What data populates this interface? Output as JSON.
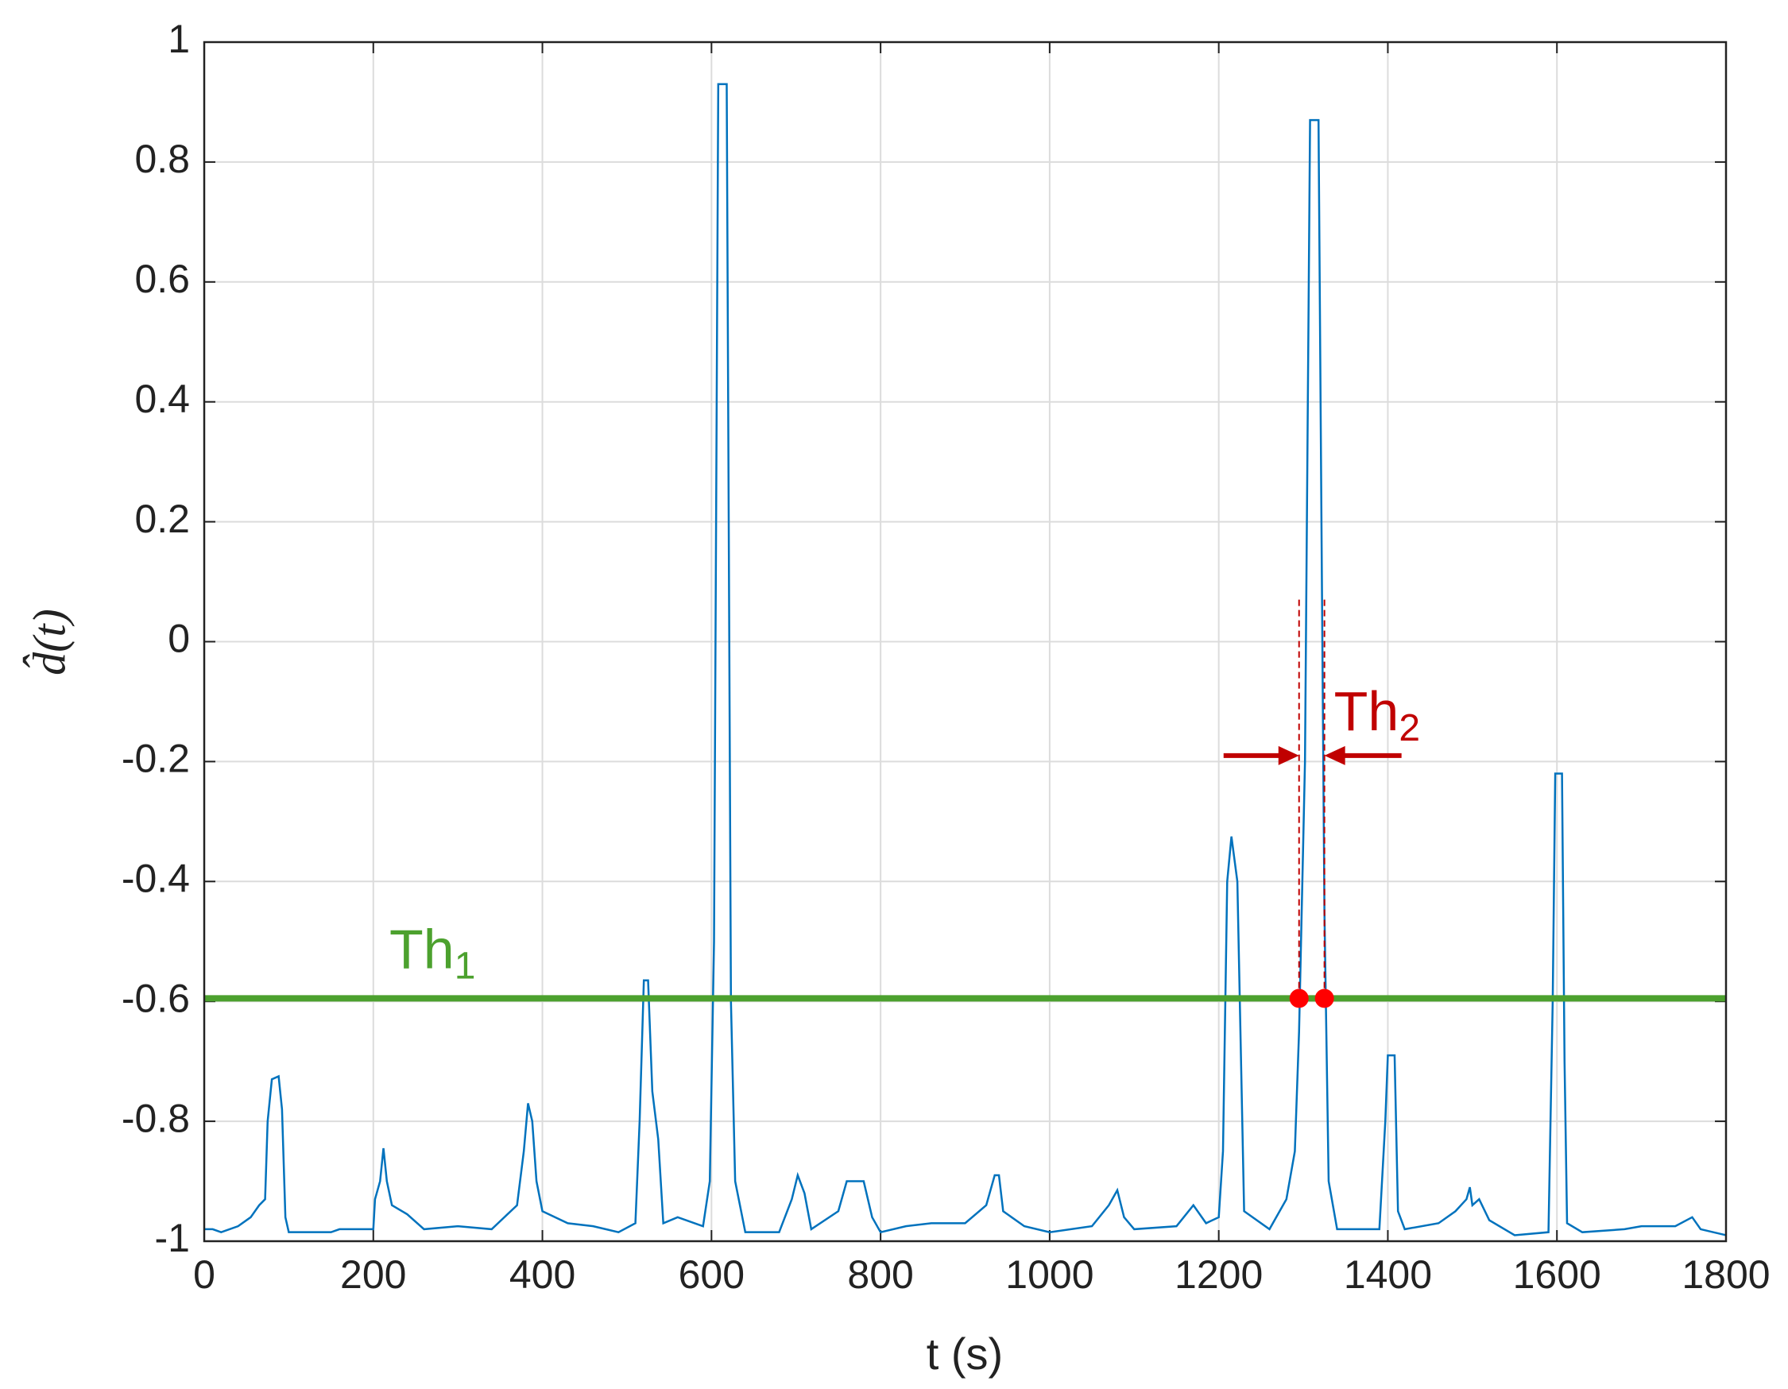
{
  "chart_data": {
    "type": "line",
    "xlabel": "t (s)",
    "ylabel": "d̂(t)",
    "xlim": [
      0,
      1800
    ],
    "xticks": [
      0,
      200,
      400,
      600,
      800,
      1000,
      1200,
      1400,
      1600,
      1800
    ],
    "ylim": [
      -1,
      1
    ],
    "yticks": [
      -1,
      -0.8,
      -0.6,
      -0.4,
      -0.2,
      0,
      0.2,
      0.4,
      0.6,
      0.8,
      1
    ],
    "grid": true,
    "x": [
      0,
      10,
      20,
      40,
      55,
      65,
      72,
      75,
      80,
      88,
      92,
      96,
      100,
      150,
      160,
      200,
      202,
      208,
      212,
      216,
      222,
      240,
      260,
      300,
      340,
      370,
      378,
      383,
      388,
      393,
      400,
      430,
      460,
      490,
      510,
      515,
      520,
      525,
      530,
      537,
      543,
      560,
      590,
      598,
      603,
      608,
      618,
      623,
      628,
      640,
      680,
      695,
      702,
      710,
      718,
      750,
      760,
      780,
      790,
      800,
      830,
      860,
      900,
      925,
      935,
      940,
      945,
      970,
      1000,
      1050,
      1070,
      1080,
      1088,
      1100,
      1150,
      1170,
      1185,
      1200,
      1205,
      1210,
      1215,
      1222,
      1230,
      1260,
      1280,
      1290,
      1295,
      1302,
      1308,
      1318,
      1322,
      1325,
      1330,
      1340,
      1390,
      1397,
      1400,
      1408,
      1412,
      1420,
      1460,
      1480,
      1493,
      1497,
      1500,
      1508,
      1520,
      1550,
      1590,
      1595,
      1598,
      1606,
      1609,
      1612,
      1630,
      1680,
      1700,
      1740,
      1760,
      1770,
      1800
    ],
    "series": [
      {
        "color": "#0072bd",
        "values": [
          -0.98,
          -0.98,
          -0.985,
          -0.975,
          -0.96,
          -0.94,
          -0.93,
          -0.8,
          -0.73,
          -0.725,
          -0.78,
          -0.96,
          -0.985,
          -0.985,
          -0.98,
          -0.98,
          -0.93,
          -0.9,
          -0.845,
          -0.9,
          -0.94,
          -0.955,
          -0.98,
          -0.975,
          -0.98,
          -0.94,
          -0.85,
          -0.77,
          -0.8,
          -0.9,
          -0.95,
          -0.97,
          -0.975,
          -0.985,
          -0.97,
          -0.8,
          -0.565,
          -0.565,
          -0.75,
          -0.83,
          -0.97,
          -0.96,
          -0.975,
          -0.9,
          -0.5,
          0.93,
          0.93,
          -0.6,
          -0.9,
          -0.985,
          -0.985,
          -0.93,
          -0.89,
          -0.92,
          -0.98,
          -0.95,
          -0.9,
          -0.9,
          -0.96,
          -0.985,
          -0.975,
          -0.97,
          -0.97,
          -0.94,
          -0.89,
          -0.89,
          -0.95,
          -0.975,
          -0.985,
          -0.975,
          -0.94,
          -0.915,
          -0.96,
          -0.98,
          -0.975,
          -0.94,
          -0.97,
          -0.96,
          -0.85,
          -0.4,
          -0.325,
          -0.4,
          -0.95,
          -0.98,
          -0.93,
          -0.85,
          -0.65,
          -0.2,
          0.87,
          0.87,
          0.1,
          -0.45,
          -0.9,
          -0.98,
          -0.98,
          -0.8,
          -0.69,
          -0.69,
          -0.95,
          -0.98,
          -0.97,
          -0.95,
          -0.93,
          -0.91,
          -0.94,
          -0.93,
          -0.965,
          -0.99,
          -0.985,
          -0.6,
          -0.22,
          -0.22,
          -0.7,
          -0.97,
          -0.985,
          -0.98,
          -0.975,
          -0.975,
          -0.96,
          -0.98,
          -0.99
        ]
      }
    ],
    "threshold": {
      "value": -0.595,
      "color": "#4ca12e",
      "text": "Th",
      "sub": "1"
    },
    "crossings": [
      {
        "x": 1295,
        "y": -0.595
      },
      {
        "x": 1325,
        "y": -0.595
      }
    ],
    "crossing_color": "#ff0000",
    "window": {
      "text": "Th",
      "sub": "2",
      "color": "#c00000"
    }
  }
}
